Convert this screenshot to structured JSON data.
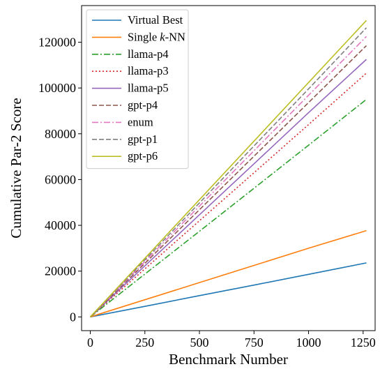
{
  "chart_data": {
    "type": "line",
    "xlabel": "Benchmark Number",
    "ylabel": "Cumulative Par-2 Score",
    "xlim": [
      -40,
      1305
    ],
    "ylim": [
      -6000,
      136000
    ],
    "xticks": [
      0,
      250,
      500,
      750,
      1000,
      1250
    ],
    "yticks": [
      0,
      20000,
      40000,
      60000,
      80000,
      100000,
      120000
    ],
    "xtick_labels": [
      "0",
      "250",
      "500",
      "750",
      "1000",
      "1250"
    ],
    "ytick_labels": [
      "0",
      "20000",
      "40000",
      "60000",
      "80000",
      "100000",
      "120000"
    ],
    "grid": false,
    "legend_position": "top-left",
    "series": [
      {
        "name": "Virtual Best",
        "prefix": "Virtual Best",
        "italic": "",
        "suffix": "",
        "color": "#1f77b4",
        "dash": "solid",
        "points": [
          [
            0,
            0
          ],
          [
            250,
            4600
          ],
          [
            500,
            9300
          ],
          [
            750,
            13900
          ],
          [
            1000,
            18600
          ],
          [
            1265,
            23600
          ]
        ]
      },
      {
        "name": "Single k-NN",
        "prefix": "Single ",
        "italic": "k",
        "suffix": "-NN",
        "color": "#ff7f0e",
        "dash": "solid",
        "points": [
          [
            0,
            0
          ],
          [
            250,
            7500
          ],
          [
            500,
            15000
          ],
          [
            750,
            22500
          ],
          [
            1000,
            30000
          ],
          [
            1265,
            37700
          ]
        ]
      },
      {
        "name": "llama-p4",
        "prefix": "llama-p4",
        "italic": "",
        "suffix": "",
        "color": "#2ca02c",
        "dash": "dashdot",
        "points": [
          [
            0,
            0
          ],
          [
            250,
            18700
          ],
          [
            500,
            37400
          ],
          [
            750,
            56200
          ],
          [
            1000,
            75000
          ],
          [
            1265,
            95000
          ]
        ]
      },
      {
        "name": "llama-p3",
        "prefix": "llama-p3",
        "italic": "",
        "suffix": "",
        "color": "#d62728",
        "dash": "dotted",
        "points": [
          [
            0,
            0
          ],
          [
            250,
            21000
          ],
          [
            500,
            42000
          ],
          [
            750,
            63000
          ],
          [
            1000,
            84000
          ],
          [
            1265,
            106500
          ]
        ]
      },
      {
        "name": "llama-p5",
        "prefix": "llama-p5",
        "italic": "",
        "suffix": "",
        "color": "#9467bd",
        "dash": "solid",
        "points": [
          [
            0,
            0
          ],
          [
            250,
            22300
          ],
          [
            500,
            44600
          ],
          [
            750,
            66900
          ],
          [
            1000,
            89200
          ],
          [
            1265,
            112500
          ]
        ]
      },
      {
        "name": "gpt-p4",
        "prefix": "gpt-p4",
        "italic": "",
        "suffix": "",
        "color": "#8c564b",
        "dash": "dashed",
        "points": [
          [
            0,
            0
          ],
          [
            250,
            23400
          ],
          [
            500,
            46800
          ],
          [
            750,
            70200
          ],
          [
            1000,
            93600
          ],
          [
            1265,
            118500
          ]
        ]
      },
      {
        "name": "enum",
        "prefix": "enum",
        "italic": "",
        "suffix": "",
        "color": "#e377c2",
        "dash": "dashdot",
        "points": [
          [
            0,
            0
          ],
          [
            250,
            24200
          ],
          [
            500,
            48400
          ],
          [
            750,
            72600
          ],
          [
            1000,
            96800
          ],
          [
            1265,
            122500
          ]
        ]
      },
      {
        "name": "gpt-p1",
        "prefix": "gpt-p1",
        "italic": "",
        "suffix": "",
        "color": "#7f7f7f",
        "dash": "dashed",
        "points": [
          [
            0,
            0
          ],
          [
            250,
            24900
          ],
          [
            500,
            49800
          ],
          [
            750,
            74700
          ],
          [
            1000,
            99600
          ],
          [
            1265,
            126300
          ]
        ]
      },
      {
        "name": "gpt-p6",
        "prefix": "gpt-p6",
        "italic": "",
        "suffix": "",
        "color": "#bcbd22",
        "dash": "solid",
        "points": [
          [
            0,
            0
          ],
          [
            250,
            25600
          ],
          [
            500,
            51200
          ],
          [
            750,
            76800
          ],
          [
            1000,
            102400
          ],
          [
            1265,
            129500
          ]
        ]
      }
    ]
  }
}
